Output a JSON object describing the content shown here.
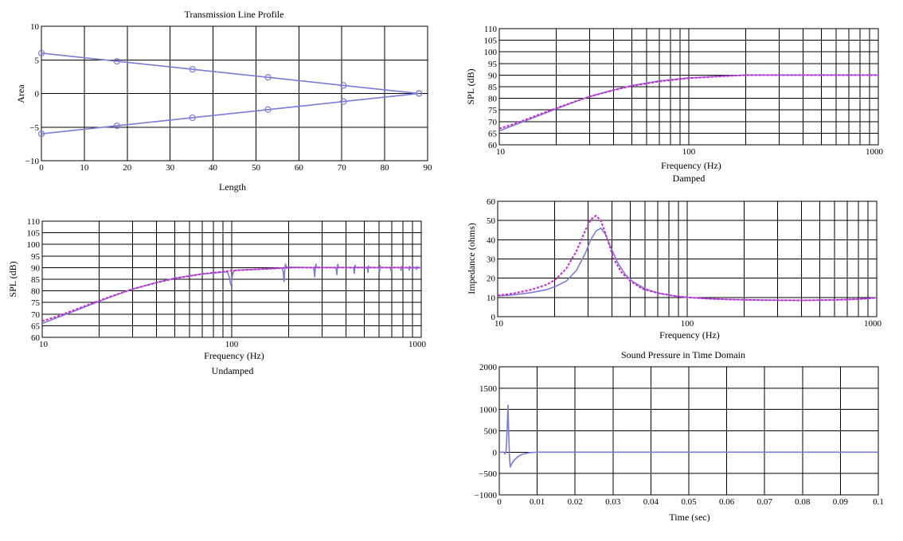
{
  "colors": {
    "primary": "#7b7bdc",
    "secondary": "#d020d0",
    "grid": "#000000"
  },
  "chart_data": [
    {
      "id": "profile",
      "type": "line",
      "title": "Transmission Line Profile",
      "xlabel": "Length",
      "ylabel": "Area",
      "subtitle": "",
      "xlim": [
        0,
        90
      ],
      "ylim": [
        -10,
        10
      ],
      "xticks": [
        0,
        10,
        20,
        30,
        40,
        50,
        60,
        70,
        80,
        90
      ],
      "yticks": [
        -10,
        -5,
        0,
        5,
        10
      ],
      "xticklabels": [
        "0",
        "10",
        "20",
        "30",
        "40",
        "50",
        "60",
        "70",
        "80",
        "90"
      ],
      "yticklabels": [
        "−10",
        "−5",
        "0",
        "5",
        "10"
      ],
      "series": [
        {
          "style": "primary",
          "markers": true,
          "points": [
            [
              0,
              6
            ],
            [
              17.6,
              4.8
            ],
            [
              35.2,
              3.6
            ],
            [
              52.8,
              2.4
            ],
            [
              70.4,
              1.2
            ],
            [
              88,
              0
            ]
          ]
        },
        {
          "style": "primary",
          "markers": true,
          "points": [
            [
              0,
              -6
            ],
            [
              17.6,
              -4.8
            ],
            [
              35.2,
              -3.6
            ],
            [
              52.8,
              -2.4
            ],
            [
              70.4,
              -1.2
            ],
            [
              88,
              0
            ]
          ]
        }
      ]
    },
    {
      "id": "damped",
      "type": "line",
      "title": "",
      "xlabel": "Frequency (Hz)",
      "ylabel": "SPL (dB)",
      "subtitle": "Damped",
      "xscale": "log",
      "xlim": [
        10,
        1000
      ],
      "ylim": [
        60,
        110
      ],
      "xticks": [
        10,
        100,
        1000
      ],
      "xticklabels": [
        "10",
        "100",
        "1000"
      ],
      "yticks": [
        60,
        65,
        70,
        75,
        80,
        85,
        90,
        95,
        100,
        105,
        110
      ],
      "yticklabels": [
        "60",
        "65",
        "70",
        "75",
        "80",
        "85",
        "90",
        "95",
        "100",
        "105",
        "110"
      ],
      "series": [
        {
          "style": "primary",
          "points": [
            [
              10,
              66
            ],
            [
              12,
              68.5
            ],
            [
              15,
              71.5
            ],
            [
              20,
              75.5
            ],
            [
              25,
              78.5
            ],
            [
              30,
              80.8
            ],
            [
              40,
              83.6
            ],
            [
              50,
              85.5
            ],
            [
              70,
              87.5
            ],
            [
              100,
              88.8
            ],
            [
              150,
              89.6
            ],
            [
              200,
              90
            ],
            [
              300,
              90
            ],
            [
              500,
              90
            ],
            [
              700,
              90
            ],
            [
              1000,
              90
            ]
          ]
        },
        {
          "style": "secondary",
          "dashed": true,
          "points": [
            [
              10,
              67
            ],
            [
              12,
              69
            ],
            [
              15,
              72
            ],
            [
              20,
              75.8
            ],
            [
              25,
              78.6
            ],
            [
              30,
              80.8
            ],
            [
              40,
              83.5
            ],
            [
              50,
              85.3
            ],
            [
              70,
              87.3
            ],
            [
              100,
              88.7
            ],
            [
              150,
              89.5
            ],
            [
              200,
              90
            ],
            [
              300,
              90
            ],
            [
              500,
              90
            ],
            [
              700,
              90
            ],
            [
              1000,
              90
            ]
          ]
        }
      ]
    },
    {
      "id": "undamped",
      "type": "line",
      "title": "",
      "xlabel": "Frequency (Hz)",
      "ylabel": "SPL (dB)",
      "subtitle": "Undamped",
      "xscale": "log",
      "xlim": [
        10,
        1000
      ],
      "ylim": [
        60,
        110
      ],
      "xticks": [
        10,
        100,
        1000
      ],
      "xticklabels": [
        "10",
        "100",
        "1000"
      ],
      "yticks": [
        60,
        65,
        70,
        75,
        80,
        85,
        90,
        95,
        100,
        105,
        110
      ],
      "yticklabels": [
        "60",
        "65",
        "70",
        "75",
        "80",
        "85",
        "90",
        "95",
        "100",
        "105",
        "110"
      ],
      "series": [
        {
          "style": "primary",
          "points": [
            [
              10,
              66
            ],
            [
              12,
              68.5
            ],
            [
              15,
              71.5
            ],
            [
              20,
              75.5
            ],
            [
              25,
              78.5
            ],
            [
              30,
              80.8
            ],
            [
              40,
              83.6
            ],
            [
              50,
              85.5
            ],
            [
              70,
              87.3
            ],
            [
              95,
              88.2
            ],
            [
              97,
              86
            ],
            [
              98,
              84
            ],
            [
              99,
              82.5
            ],
            [
              100,
              84
            ],
            [
              101,
              87
            ],
            [
              103,
              88.8
            ],
            [
              110,
              89
            ],
            [
              150,
              89.4
            ],
            [
              185,
              89.8
            ],
            [
              187,
              88
            ],
            [
              188,
              85.5
            ],
            [
              189,
              84
            ],
            [
              190,
              88
            ],
            [
              192,
              91.5
            ],
            [
              194,
              90.2
            ],
            [
              270,
              90
            ],
            [
              272,
              88.5
            ],
            [
              274,
              86
            ],
            [
              276,
              89.5
            ],
            [
              278,
              91.5
            ],
            [
              280,
              90.1
            ],
            [
              355,
              90
            ],
            [
              357,
              88.5
            ],
            [
              359,
              87
            ],
            [
              361,
              90.5
            ],
            [
              363,
              91.5
            ],
            [
              365,
              90.1
            ],
            [
              440,
              90
            ],
            [
              442,
              88
            ],
            [
              444,
              87.5
            ],
            [
              446,
              90.8
            ],
            [
              448,
              91
            ],
            [
              450,
              90.1
            ],
            [
              520,
              90
            ],
            [
              522,
              88.5
            ],
            [
              524,
              88
            ],
            [
              526,
              90.8
            ],
            [
              528,
              90.1
            ],
            [
              600,
              90
            ],
            [
              602,
              88.5
            ],
            [
              604,
              88.5
            ],
            [
              606,
              90.8
            ],
            [
              608,
              90.1
            ],
            [
              690,
              90
            ],
            [
              692,
              89
            ],
            [
              694,
              88.5
            ],
            [
              696,
              90.6
            ],
            [
              698,
              90.1
            ],
            [
              780,
              90
            ],
            [
              782,
              89
            ],
            [
              784,
              88.8
            ],
            [
              786,
              90.5
            ],
            [
              788,
              90
            ],
            [
              860,
              90
            ],
            [
              862,
              89
            ],
            [
              864,
              89
            ],
            [
              866,
              90.5
            ],
            [
              868,
              90
            ],
            [
              940,
              90
            ],
            [
              942,
              89.2
            ],
            [
              944,
              89.2
            ],
            [
              946,
              90.4
            ],
            [
              948,
              90
            ],
            [
              1000,
              90
            ]
          ]
        },
        {
          "style": "secondary",
          "dashed": true,
          "points": [
            [
              10,
              67
            ],
            [
              12,
              69
            ],
            [
              15,
              72
            ],
            [
              20,
              75.8
            ],
            [
              25,
              78.6
            ],
            [
              30,
              80.8
            ],
            [
              40,
              83.5
            ],
            [
              50,
              85.3
            ],
            [
              70,
              87.3
            ],
            [
              100,
              88.7
            ],
            [
              150,
              89.5
            ],
            [
              200,
              90
            ],
            [
              300,
              90
            ],
            [
              500,
              90
            ],
            [
              700,
              90
            ],
            [
              1000,
              90
            ]
          ]
        }
      ]
    },
    {
      "id": "impedance",
      "type": "line",
      "title": "",
      "xlabel": "Frequency (Hz)",
      "ylabel": "Impedance (ohms)",
      "subtitle": "",
      "xscale": "log",
      "xlim": [
        10,
        1000
      ],
      "ylim": [
        0,
        60
      ],
      "xticks": [
        10,
        100,
        1000
      ],
      "xticklabels": [
        "10",
        "100",
        "1000"
      ],
      "yticks": [
        0,
        10,
        20,
        30,
        40,
        50,
        60
      ],
      "yticklabels": [
        "0",
        "10",
        "20",
        "30",
        "40",
        "50",
        "60"
      ],
      "series": [
        {
          "style": "primary",
          "points": [
            [
              10,
              10.8
            ],
            [
              12,
              11.3
            ],
            [
              15,
              12.5
            ],
            [
              18,
              14
            ],
            [
              20,
              15.5
            ],
            [
              23,
              18.5
            ],
            [
              26,
              24
            ],
            [
              29,
              33
            ],
            [
              31,
              40
            ],
            [
              33,
              44.5
            ],
            [
              35,
              46
            ],
            [
              37,
              43
            ],
            [
              40,
              35
            ],
            [
              43,
              28
            ],
            [
              47,
              22
            ],
            [
              52,
              18
            ],
            [
              60,
              14.5
            ],
            [
              70,
              12.3
            ],
            [
              85,
              10.8
            ],
            [
              100,
              10
            ],
            [
              130,
              9.3
            ],
            [
              170,
              8.9
            ],
            [
              250,
              8.6
            ],
            [
              400,
              8.5
            ],
            [
              600,
              8.7
            ],
            [
              800,
              9.1
            ],
            [
              1000,
              9.8
            ]
          ]
        },
        {
          "style": "secondary",
          "dashed": true,
          "points": [
            [
              10,
              11
            ],
            [
              12,
              12
            ],
            [
              15,
              14
            ],
            [
              18,
              16.5
            ],
            [
              20,
              19
            ],
            [
              23,
              25
            ],
            [
              26,
              34
            ],
            [
              29,
              45
            ],
            [
              31,
              50.5
            ],
            [
              33,
              52.5
            ],
            [
              35,
              50
            ],
            [
              38,
              40
            ],
            [
              41,
              30
            ],
            [
              45,
              23
            ],
            [
              50,
              18.5
            ],
            [
              58,
              14.5
            ],
            [
              70,
              12.3
            ],
            [
              85,
              10.8
            ],
            [
              100,
              10
            ],
            [
              130,
              9.3
            ],
            [
              170,
              8.9
            ],
            [
              250,
              8.6
            ],
            [
              400,
              8.5
            ],
            [
              600,
              8.7
            ],
            [
              800,
              9.1
            ],
            [
              1000,
              9.8
            ]
          ]
        }
      ]
    },
    {
      "id": "timedomain",
      "type": "line",
      "title": "Sound Pressure in Time Domain",
      "xlabel": "Time (sec)",
      "ylabel": "",
      "subtitle": "",
      "xlim": [
        0,
        0.1
      ],
      "ylim": [
        -1000,
        2000
      ],
      "xticks": [
        0,
        0.01,
        0.02,
        0.03,
        0.04,
        0.05,
        0.06,
        0.07,
        0.08,
        0.09,
        0.1
      ],
      "xticklabels": [
        "0",
        "0.01",
        "0.02",
        "0.03",
        "0.04",
        "0.05",
        "0.06",
        "0.07",
        "0.08",
        "0.09",
        "0.1"
      ],
      "yticks": [
        -1000,
        -500,
        0,
        500,
        1000,
        1500,
        2000
      ],
      "yticklabels": [
        "−1000",
        "−500",
        "0",
        "500",
        "1000",
        "1500",
        "2000"
      ],
      "series": [
        {
          "style": "primary",
          "points": [
            [
              0,
              0
            ],
            [
              0.0012,
              0
            ],
            [
              0.0015,
              -40
            ],
            [
              0.0018,
              30
            ],
            [
              0.0021,
              600
            ],
            [
              0.0023,
              1100
            ],
            [
              0.0025,
              400
            ],
            [
              0.0027,
              -150
            ],
            [
              0.0029,
              -350
            ],
            [
              0.0032,
              -280
            ],
            [
              0.004,
              -180
            ],
            [
              0.005,
              -100
            ],
            [
              0.006,
              -50
            ],
            [
              0.008,
              -10
            ],
            [
              0.01,
              0
            ],
            [
              0.1,
              0
            ]
          ]
        }
      ]
    }
  ]
}
